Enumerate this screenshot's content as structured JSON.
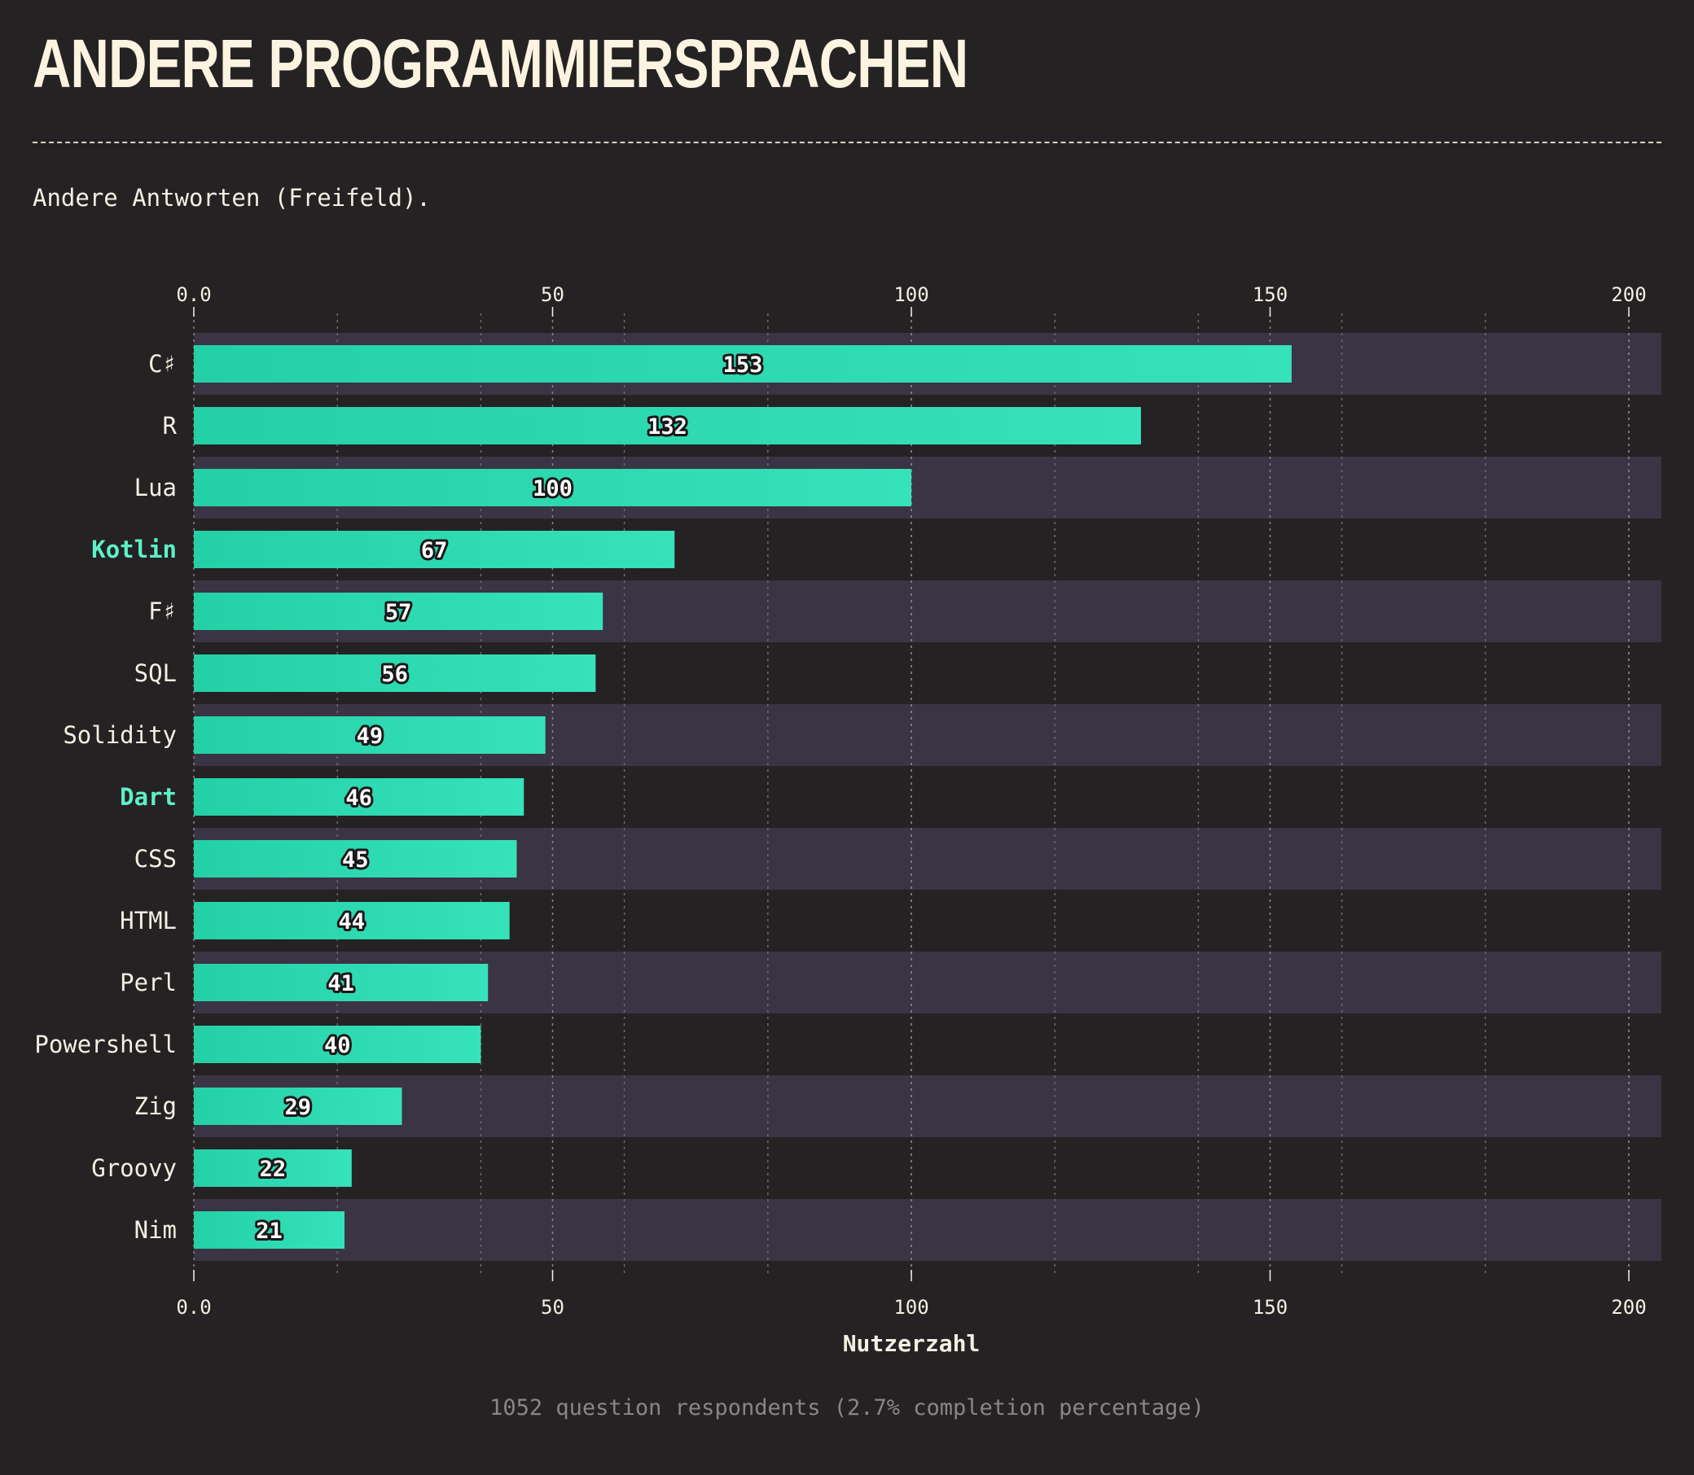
{
  "page": {
    "title": "ANDERE PROGRAMMIERSPRACHEN",
    "subtitle": "Andere Antworten (Freifeld).",
    "footer": "1052 question respondents (2.7% completion percentage)"
  },
  "colors": {
    "background": "#252223",
    "band": "#3a3444",
    "bar_start": "#24d0a6",
    "bar_end": "#36e2ba",
    "highlight_label": "#5ef0c8",
    "text": "#f4efe4",
    "muted": "#8a8688"
  },
  "chart_data": {
    "type": "bar",
    "orientation": "horizontal",
    "xlabel": "Nutzerzahl",
    "ylabel": "",
    "xlim": [
      0,
      205
    ],
    "xticks": [
      "0.0",
      "50",
      "100",
      "150",
      "200"
    ],
    "xtick_values": [
      0,
      50,
      100,
      150,
      200
    ],
    "minor_grid_values": [
      20,
      40,
      60,
      80,
      100,
      120,
      140,
      160,
      180,
      200
    ],
    "grid": true,
    "axis_labels_top_and_bottom": true,
    "categories": [
      "C♯",
      "R",
      "Lua",
      "Kotlin",
      "F♯",
      "SQL",
      "Solidity",
      "Dart",
      "CSS",
      "HTML",
      "Perl",
      "Powershell",
      "Zig",
      "Groovy",
      "Nim"
    ],
    "values": [
      153,
      132,
      100,
      67,
      57,
      56,
      49,
      46,
      45,
      44,
      41,
      40,
      29,
      22,
      21
    ],
    "highlighted": [
      "Kotlin",
      "Dart"
    ]
  }
}
